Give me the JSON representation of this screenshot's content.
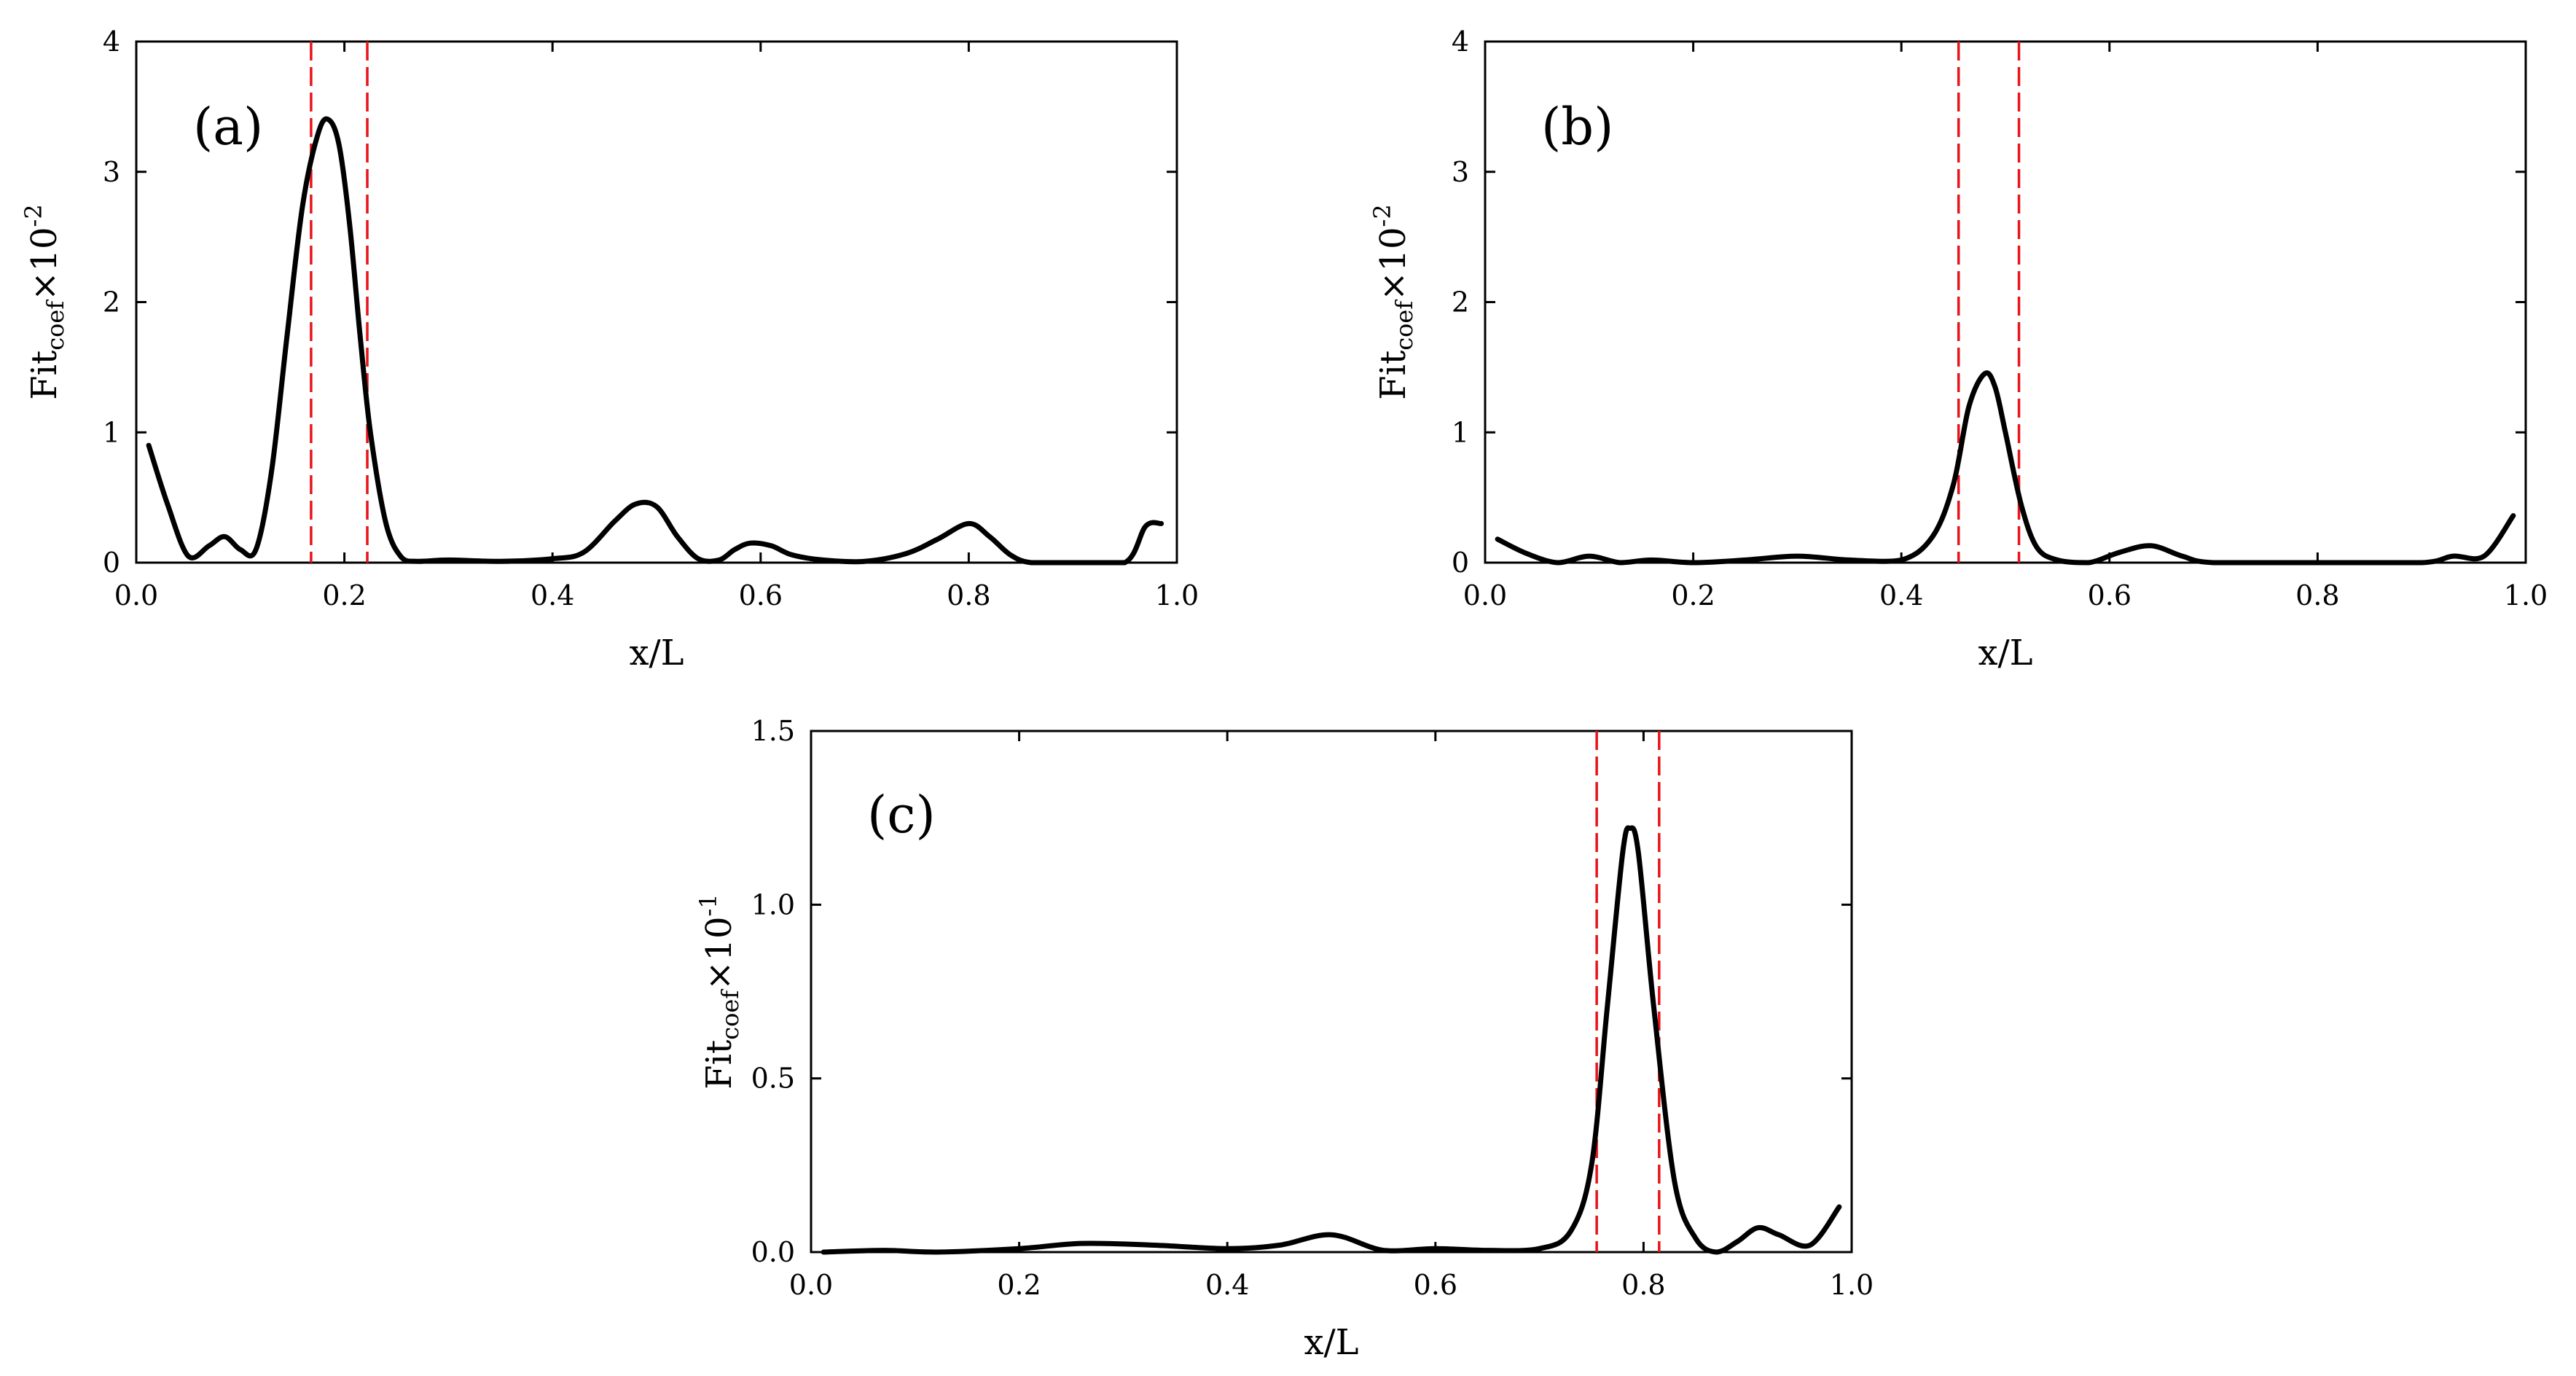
{
  "colors": {
    "curve": "#000000",
    "marker": "#e8141b",
    "background": "#ffffff"
  },
  "chart_data": [
    {
      "type": "line",
      "panel": "(a)",
      "xlabel": "x/L",
      "ylabel": {
        "base": "Fit",
        "sub": "coef",
        "mult": "×10",
        "exp": "-2"
      },
      "xlim": [
        0.0,
        1.0
      ],
      "ylim": [
        0,
        4
      ],
      "xticks": [
        0.0,
        0.2,
        0.4,
        0.6,
        0.8,
        1.0
      ],
      "xtick_labels": [
        "0.0",
        "0.2",
        "0.4",
        "0.6",
        "0.8",
        "1.0"
      ],
      "yticks": [
        0,
        1,
        2,
        3,
        4
      ],
      "ytick_labels": [
        "0",
        "1",
        "2",
        "3",
        "4"
      ],
      "vlines": [
        0.168,
        0.222
      ],
      "series": [
        {
          "name": "Fit_coef",
          "x": [
            0.012,
            0.03,
            0.05,
            0.07,
            0.085,
            0.1,
            0.115,
            0.13,
            0.145,
            0.16,
            0.175,
            0.185,
            0.195,
            0.205,
            0.215,
            0.225,
            0.24,
            0.255,
            0.27,
            0.3,
            0.35,
            0.4,
            0.43,
            0.46,
            0.48,
            0.5,
            0.52,
            0.54,
            0.56,
            0.575,
            0.59,
            0.61,
            0.63,
            0.66,
            0.7,
            0.74,
            0.77,
            0.8,
            0.82,
            0.84,
            0.86,
            0.9,
            0.95,
            0.97,
            0.985
          ],
          "y": [
            0.9,
            0.45,
            0.05,
            0.13,
            0.2,
            0.1,
            0.1,
            0.7,
            1.75,
            2.75,
            3.3,
            3.4,
            3.2,
            2.6,
            1.75,
            1.0,
            0.3,
            0.04,
            0.01,
            0.02,
            0.01,
            0.03,
            0.08,
            0.32,
            0.45,
            0.43,
            0.2,
            0.03,
            0.02,
            0.1,
            0.15,
            0.13,
            0.06,
            0.02,
            0.01,
            0.07,
            0.18,
            0.3,
            0.2,
            0.06,
            0.0,
            0.0,
            0.0,
            0.28,
            0.3
          ]
        }
      ]
    },
    {
      "type": "line",
      "panel": "(b)",
      "xlabel": "x/L",
      "ylabel": {
        "base": "Fit",
        "sub": "coef",
        "mult": "×10",
        "exp": "-2"
      },
      "xlim": [
        0.0,
        1.0
      ],
      "ylim": [
        0,
        4
      ],
      "xticks": [
        0.0,
        0.2,
        0.4,
        0.6,
        0.8,
        1.0
      ],
      "xtick_labels": [
        "0.0",
        "0.2",
        "0.4",
        "0.6",
        "0.8",
        "1.0"
      ],
      "yticks": [
        0,
        1,
        2,
        3,
        4
      ],
      "ytick_labels": [
        "0",
        "1",
        "2",
        "3",
        "4"
      ],
      "vlines": [
        0.455,
        0.513
      ],
      "series": [
        {
          "name": "Fit_coef",
          "x": [
            0.012,
            0.04,
            0.07,
            0.1,
            0.13,
            0.16,
            0.2,
            0.25,
            0.3,
            0.35,
            0.4,
            0.43,
            0.45,
            0.465,
            0.48,
            0.49,
            0.5,
            0.515,
            0.53,
            0.55,
            0.58,
            0.61,
            0.64,
            0.67,
            0.7,
            0.8,
            0.9,
            0.93,
            0.96,
            0.988
          ],
          "y": [
            0.18,
            0.07,
            0.0,
            0.05,
            0.0,
            0.02,
            0.0,
            0.02,
            0.05,
            0.02,
            0.02,
            0.2,
            0.6,
            1.2,
            1.45,
            1.35,
            1.0,
            0.45,
            0.12,
            0.02,
            0.0,
            0.08,
            0.13,
            0.05,
            0.0,
            0.0,
            0.0,
            0.05,
            0.05,
            0.36
          ]
        }
      ]
    },
    {
      "type": "line",
      "panel": "(c)",
      "xlabel": "x/L",
      "ylabel": {
        "base": "Fit",
        "sub": "coef",
        "mult": "×10",
        "exp": "-1"
      },
      "xlim": [
        0.0,
        1.0
      ],
      "ylim": [
        0.0,
        1.5
      ],
      "xticks": [
        0.0,
        0.2,
        0.4,
        0.6,
        0.8,
        1.0
      ],
      "xtick_labels": [
        "0.0",
        "0.2",
        "0.4",
        "0.6",
        "0.8",
        "1.0"
      ],
      "yticks": [
        0.0,
        0.5,
        1.0,
        1.5
      ],
      "ytick_labels": [
        "0.0",
        "0.5",
        "1.0",
        "1.5"
      ],
      "vlines": [
        0.755,
        0.815
      ],
      "series": [
        {
          "name": "Fit_coef",
          "x": [
            0.012,
            0.07,
            0.12,
            0.2,
            0.26,
            0.33,
            0.4,
            0.45,
            0.5,
            0.55,
            0.6,
            0.65,
            0.7,
            0.73,
            0.75,
            0.765,
            0.78,
            0.787,
            0.795,
            0.81,
            0.83,
            0.85,
            0.87,
            0.89,
            0.91,
            0.93,
            0.96,
            0.988
          ],
          "y": [
            0.0,
            0.005,
            0.0,
            0.01,
            0.025,
            0.02,
            0.01,
            0.02,
            0.05,
            0.005,
            0.01,
            0.005,
            0.01,
            0.06,
            0.25,
            0.7,
            1.15,
            1.22,
            1.15,
            0.7,
            0.2,
            0.04,
            0.0,
            0.03,
            0.07,
            0.05,
            0.02,
            0.13
          ]
        }
      ]
    }
  ]
}
